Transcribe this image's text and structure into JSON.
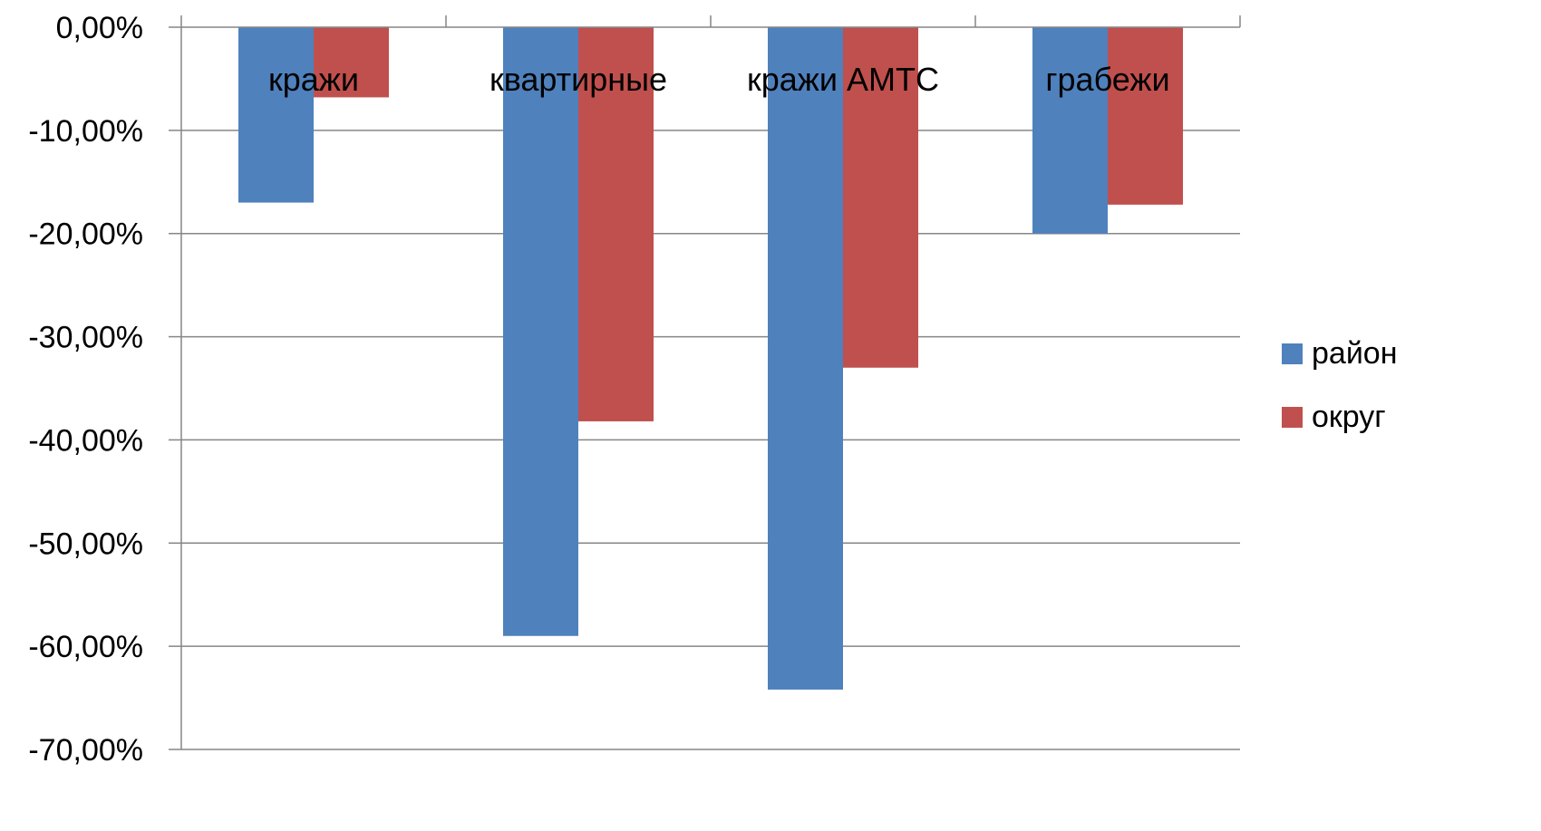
{
  "chart_data": {
    "type": "bar",
    "categories": [
      "кражи",
      "квартирные",
      "кражи АМТС",
      "грабежи"
    ],
    "series": [
      {
        "name": "район",
        "values": [
          -17.0,
          -59.0,
          -64.2,
          -20.0
        ],
        "color": "#4F81BD"
      },
      {
        "name": "округ",
        "values": [
          -6.8,
          -38.2,
          -33.0,
          -17.2
        ],
        "color": "#C0504D"
      }
    ],
    "ylim": [
      -70,
      0
    ],
    "yticks": [
      0,
      -10,
      -20,
      -30,
      -40,
      -50,
      -60,
      -70
    ],
    "ytick_labels": [
      "0,00%",
      "-10,00%",
      "-20,00%",
      "-30,00%",
      "-40,00%",
      "-50,00%",
      "-60,00%",
      "-70,00%"
    ],
    "grid": true,
    "legend_position": "right",
    "category_labels_position": "top",
    "title": "",
    "xlabel": "",
    "ylabel": ""
  }
}
